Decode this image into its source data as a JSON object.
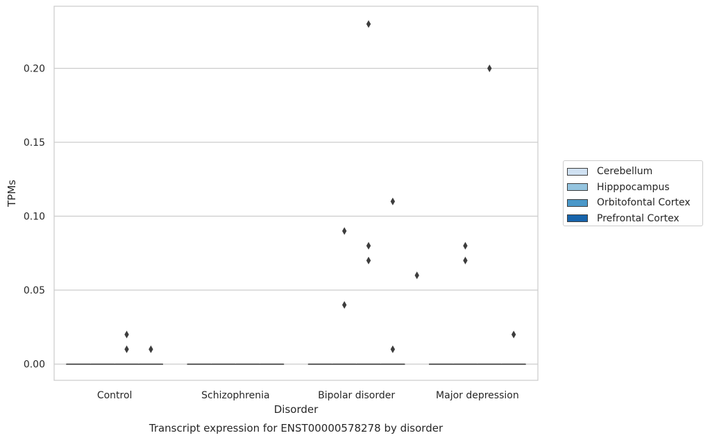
{
  "chart_data": {
    "type": "box",
    "title": "Transcript expression for ENST00000578278 by disorder",
    "xlabel": "Disorder",
    "ylabel": "TPMs",
    "ylim": [
      -0.011,
      0.242
    ],
    "yticks": [
      "0.00",
      "0.05",
      "0.10",
      "0.15",
      "0.20"
    ],
    "ytick_values": [
      0.0,
      0.05,
      0.1,
      0.15,
      0.2
    ],
    "grid": true,
    "legend_position": "right",
    "categories": [
      "Control",
      "Schizophrenia",
      "Bipolar disorder",
      "Major depression"
    ],
    "series": [
      {
        "name": "Cerebellum",
        "color": "#d0e1f2",
        "boxes": [
          {
            "category": "Control",
            "median": 0,
            "q1": 0,
            "q3": 0,
            "outliers": []
          },
          {
            "category": "Schizophrenia",
            "median": 0,
            "q1": 0,
            "q3": 0,
            "outliers": []
          },
          {
            "category": "Bipolar disorder",
            "median": 0,
            "q1": 0,
            "q3": 0,
            "outliers": []
          },
          {
            "category": "Major depression",
            "median": 0,
            "q1": 0,
            "q3": 0,
            "outliers": []
          }
        ]
      },
      {
        "name": "Hipppocampus",
        "color": "#94c4df",
        "boxes": [
          {
            "category": "Control",
            "median": 0,
            "q1": 0,
            "q3": 0,
            "outliers": []
          },
          {
            "category": "Schizophrenia",
            "median": 0,
            "q1": 0,
            "q3": 0,
            "outliers": []
          },
          {
            "category": "Bipolar disorder",
            "median": 0,
            "q1": 0,
            "q3": 0,
            "outliers": [
              0.09,
              0.04
            ]
          },
          {
            "category": "Major depression",
            "median": 0,
            "q1": 0,
            "q3": 0,
            "outliers": [
              0.08,
              0.07
            ]
          }
        ]
      },
      {
        "name": "Orbitofontal Cortex",
        "color": "#4a98c9",
        "boxes": [
          {
            "category": "Control",
            "median": 0,
            "q1": 0,
            "q3": 0,
            "outliers": [
              0.02,
              0.01
            ]
          },
          {
            "category": "Schizophrenia",
            "median": 0,
            "q1": 0,
            "q3": 0,
            "outliers": []
          },
          {
            "category": "Bipolar disorder",
            "median": 0,
            "q1": 0,
            "q3": 0,
            "outliers": [
              0.23,
              0.08,
              0.07
            ]
          },
          {
            "category": "Major depression",
            "median": 0,
            "q1": 0,
            "q3": 0,
            "outliers": [
              0.2
            ]
          }
        ]
      },
      {
        "name": "Prefrontal Cortex",
        "color": "#1764ab",
        "boxes": [
          {
            "category": "Control",
            "median": 0,
            "q1": 0,
            "q3": 0,
            "outliers": [
              0.01
            ]
          },
          {
            "category": "Schizophrenia",
            "median": 0,
            "q1": 0,
            "q3": 0,
            "outliers": []
          },
          {
            "category": "Bipolar disorder",
            "median": 0,
            "q1": 0,
            "q3": 0,
            "outliers": [
              0.11,
              0.01
            ]
          },
          {
            "category": "Major depression",
            "median": 0,
            "q1": 0,
            "q3": 0,
            "outliers": [
              0.02
            ]
          }
        ]
      }
    ],
    "bipolar_extra_outliers": [
      {
        "series": "Prefrontal Cortex",
        "value": 0.06,
        "position_offset": 1
      }
    ]
  }
}
